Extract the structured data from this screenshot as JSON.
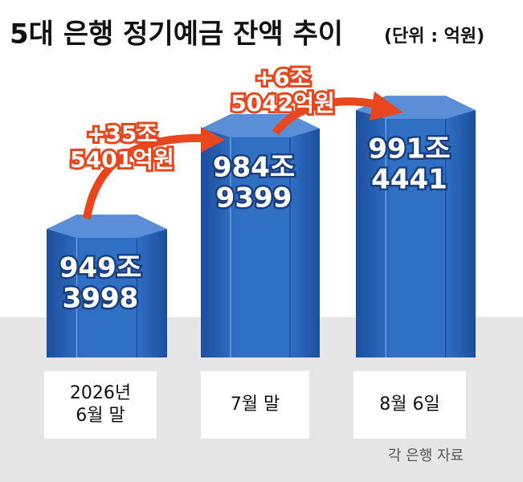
{
  "chart_data": {
    "type": "bar",
    "title": "5대 은행 정기예금 잔액 추이",
    "subtitle": "(단위 : 억원)",
    "source": "각 은행 자료",
    "categories": [
      [
        "2026년",
        "6월 말"
      ],
      [
        "7월 말"
      ],
      [
        "8월 6일"
      ]
    ],
    "values": [
      9493998,
      9849399,
      9914441
    ],
    "value_labels": [
      [
        "949조",
        "3998"
      ],
      [
        "984조",
        "9399"
      ],
      [
        "991조",
        "4441"
      ]
    ],
    "annotations": [
      {
        "text": [
          "+35조",
          "5401억원"
        ],
        "value": 355401
      },
      {
        "text": [
          "+6조",
          "5042억원"
        ],
        "value": 65042
      }
    ],
    "color": "#2f6fc4",
    "arrow_color": "#e8461c",
    "ylim": [
      9040000,
      10000000
    ]
  }
}
